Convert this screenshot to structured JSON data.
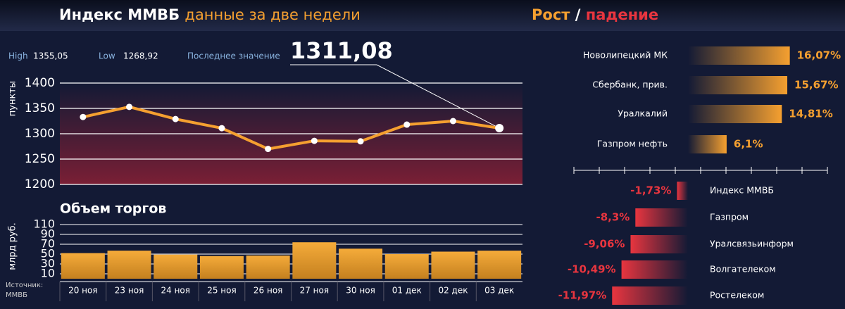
{
  "source_label": "Источник:",
  "source": "ММВБ",
  "chart_data": [
    {
      "type": "line",
      "title": "Индекс ММВБ",
      "subtitle": "данные за две недели",
      "y_label": "пункты",
      "stats": [
        {
          "label": "High",
          "value": 1355.05,
          "value_label": "1355,05"
        },
        {
          "label": "Low",
          "value": 1268.92,
          "value_label": "1268,92"
        },
        {
          "label": "Последнее значение",
          "value": 1311.08,
          "value_label": "1311,08"
        }
      ],
      "categories": [
        "20 ноя",
        "23 ноя",
        "24 ноя",
        "25 ноя",
        "26 ноя",
        "27 ноя",
        "30 ноя",
        "01 дек",
        "02 дек",
        "03 дек"
      ],
      "series": [
        {
          "name": "Индекс ММВБ",
          "color": "#f5a030",
          "values": [
            1333,
            1353,
            1329,
            1311,
            1270,
            1286,
            1285,
            1318,
            1325,
            1311.08
          ]
        }
      ],
      "ylim": [
        1200,
        1400
      ],
      "yticks": [
        1200,
        1250,
        1300,
        1350,
        1400
      ],
      "grid": true
    },
    {
      "type": "bar",
      "title": "Объем торгов",
      "y_label": "млрд руб.",
      "color": "#f0a535",
      "values": [
        52,
        57,
        49,
        46,
        47,
        74,
        61,
        50,
        55,
        57
      ],
      "ylim": [
        0,
        110
      ],
      "yticks": [
        10,
        30,
        50,
        70,
        90,
        110
      ],
      "grid": true
    },
    {
      "type": "hbar",
      "title_parts": [
        {
          "text": "Рост",
          "color": "#f5a030"
        },
        {
          "text": "/",
          "color": "#ffffff"
        },
        {
          "text": "падение",
          "color": "#e8353f"
        }
      ],
      "categories": [
        "Новолипецкий МК",
        "Сбербанк, прив.",
        "Уралкалий",
        "Газпром нефть",
        "Индекс ММВБ",
        "Газпром",
        "Уралсвязьинформ",
        "Волгателеком",
        "Ростелеком"
      ],
      "values": [
        16.07,
        15.67,
        14.81,
        6.1,
        -1.73,
        -8.3,
        -9.06,
        -10.49,
        -11.97
      ],
      "value_labels": [
        "16,07%",
        "15,67%",
        "14,81%",
        "6,1%",
        "-1,73%",
        "-8,3%",
        "-9,06%",
        "-10,49%",
        "-11,97%"
      ],
      "positive_color": "#f5a030",
      "negative_color": "#e8353f",
      "xlim": [
        -18,
        22
      ]
    }
  ]
}
